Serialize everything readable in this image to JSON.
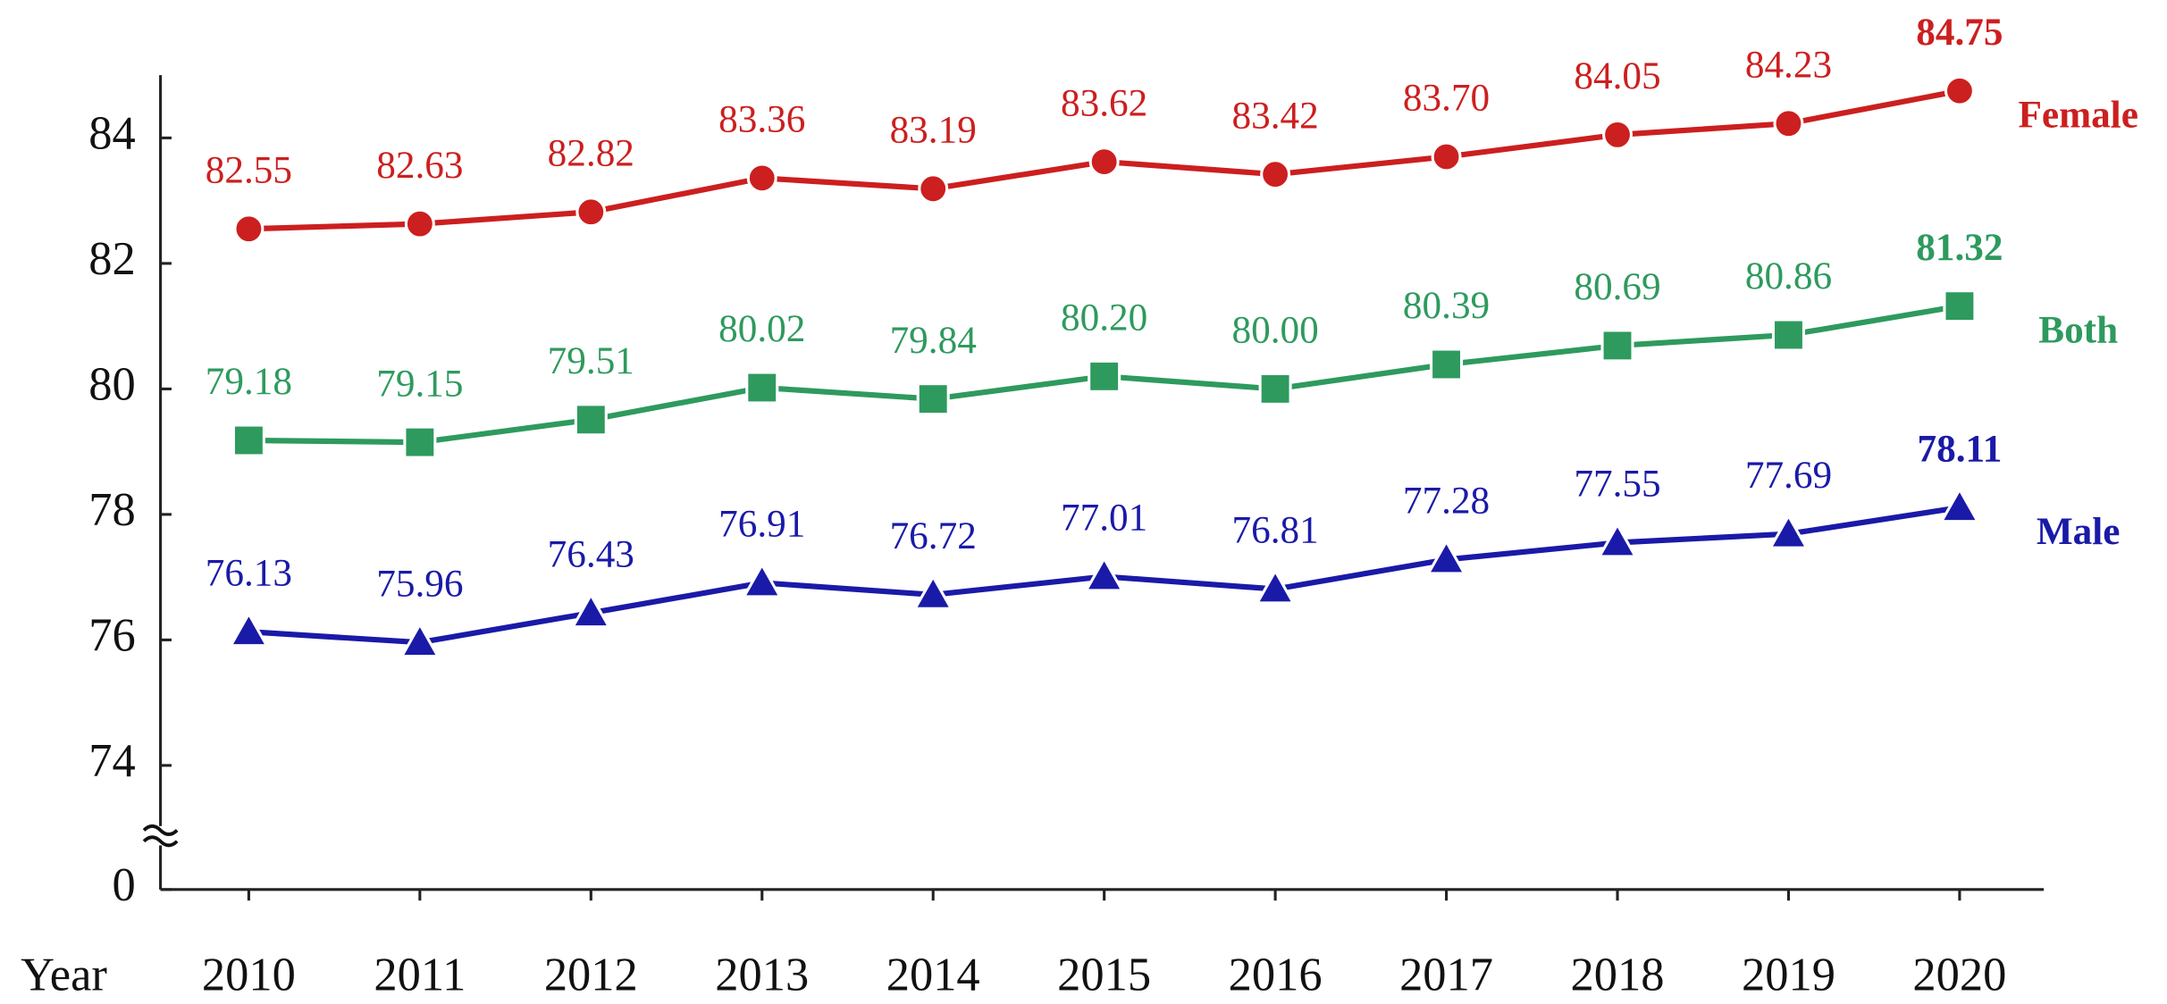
{
  "chart_data": {
    "type": "line",
    "categories": [
      "2010",
      "2011",
      "2012",
      "2013",
      "2014",
      "2015",
      "2016",
      "2017",
      "2018",
      "2019",
      "2020"
    ],
    "xlabel": "Year",
    "ylim": [
      0,
      85
    ],
    "yticks": [
      0,
      74,
      76,
      78,
      80,
      82,
      84
    ],
    "axis_break": [
      0,
      74
    ],
    "series": [
      {
        "name": "Female",
        "color": "#cc1f1f",
        "marker": "circle",
        "values": [
          82.55,
          82.63,
          82.82,
          83.36,
          83.19,
          83.62,
          83.42,
          83.7,
          84.05,
          84.23,
          84.75
        ],
        "value_labels": [
          "82.55",
          "82.63",
          "82.82",
          "83.36",
          "83.19",
          "83.62",
          "83.42",
          "83.70",
          "84.05",
          "84.23",
          "84.75"
        ]
      },
      {
        "name": "Both",
        "color": "#2e9a5e",
        "marker": "square",
        "values": [
          79.18,
          79.15,
          79.51,
          80.02,
          79.84,
          80.2,
          80,
          80.39,
          80.69,
          80.86,
          81.32
        ],
        "value_labels": [
          "79.18",
          "79.15",
          "79.51",
          "80.02",
          "79.84",
          "80.20",
          "80.00",
          "80.39",
          "80.69",
          "80.86",
          "81.32"
        ]
      },
      {
        "name": "Male",
        "color": "#1a1aa8",
        "marker": "triangle",
        "values": [
          76.13,
          75.96,
          76.43,
          76.91,
          76.72,
          77.01,
          76.81,
          77.28,
          77.55,
          77.69,
          78.11
        ],
        "value_labels": [
          "76.13",
          "75.96",
          "76.43",
          "76.91",
          "76.72",
          "77.01",
          "76.81",
          "77.28",
          "77.55",
          "77.69",
          "78.11"
        ]
      }
    ]
  }
}
